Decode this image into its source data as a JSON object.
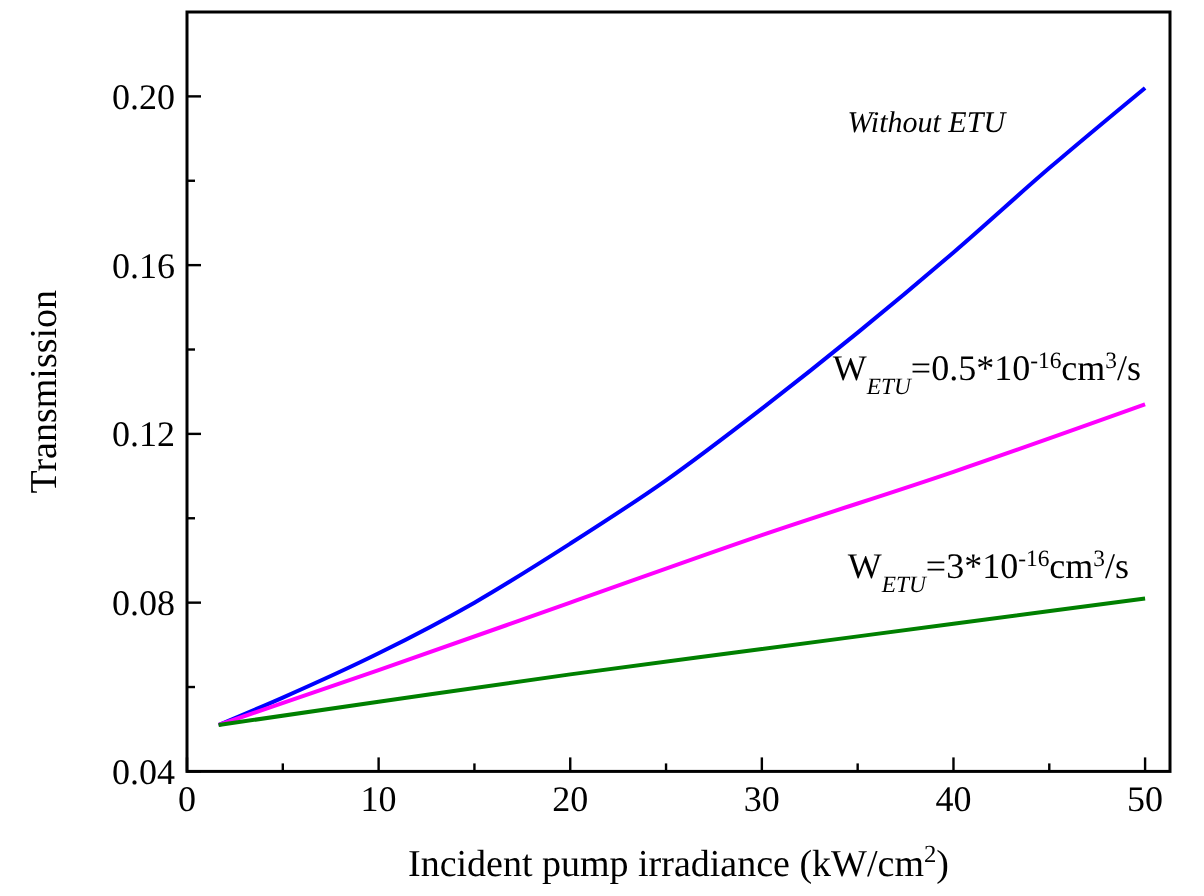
{
  "chart_data": {
    "type": "line",
    "xlabel": "Incident pump irradiance (kW/cm$^{2}$)",
    "ylabel": "Transmission",
    "xlim": [
      0,
      51.3
    ],
    "ylim": [
      0.04,
      0.22
    ],
    "xticks": [
      0,
      {
        "value": 5,
        "label": null
      },
      10,
      {
        "value": 15,
        "label": null
      },
      20,
      {
        "value": 25,
        "label": null
      },
      30,
      {
        "value": 35,
        "label": null
      },
      40,
      {
        "value": 45,
        "label": null
      },
      50
    ],
    "yticks": [
      0.04,
      {
        "value": 0.06,
        "label": null
      },
      0.08,
      {
        "value": 0.1,
        "label": null
      },
      0.12,
      {
        "value": 0.14,
        "label": null
      },
      0.16,
      {
        "value": 0.18,
        "label": null
      },
      {
        "value": 0.2,
        "label": "0.20"
      }
    ],
    "grid": false,
    "marker": "none",
    "line_style": "solid",
    "series": [
      {
        "name": "Without ETU",
        "color": "#0000ff",
        "x": [
          1.65,
          5,
          10,
          15,
          20,
          25,
          30,
          35,
          40,
          45,
          50
        ],
        "values": [
          0.051,
          0.0575,
          0.068,
          0.08,
          0.094,
          0.109,
          0.126,
          0.144,
          0.163,
          0.183,
          0.202
        ]
      },
      {
        "name": "W$_{ETU}$=0.5*10$^{-16}$cm$^{3}$/s",
        "color": "#ff00ff",
        "x": [
          1.65,
          10,
          20,
          30,
          40,
          50
        ],
        "values": [
          0.051,
          0.064,
          0.08,
          0.096,
          0.111,
          0.127
        ]
      },
      {
        "name": "W$_{ETU}$=3*10$^{-16}$cm$^{3}$/s",
        "color": "#008000",
        "x": [
          1.65,
          10,
          20,
          30,
          40,
          50
        ],
        "values": [
          0.051,
          0.0565,
          0.063,
          0.069,
          0.075,
          0.081
        ]
      }
    ]
  }
}
